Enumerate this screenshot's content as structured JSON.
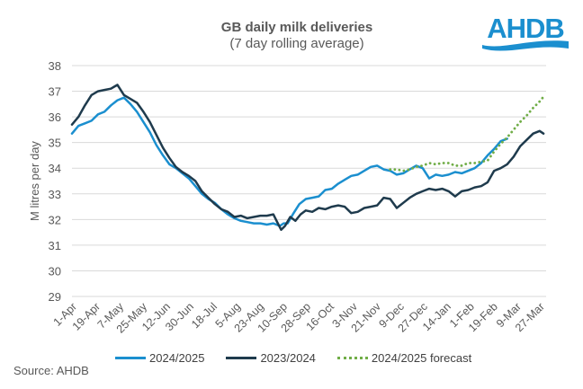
{
  "chart_data": {
    "type": "line",
    "title": "GB daily milk deliveries",
    "subtitle": "(7 day rolling average)",
    "xlabel": "",
    "ylabel": "M litres per day",
    "ylim": [
      29,
      38
    ],
    "yticks": [
      29,
      30,
      31,
      32,
      33,
      34,
      35,
      36,
      37,
      38
    ],
    "xlim_days": [
      0,
      365
    ],
    "x_tick_labels": [
      "1-Apr",
      "19-Apr",
      "7-May",
      "25-May",
      "12-Jun",
      "30-Jun",
      "18-Jul",
      "5-Aug",
      "23-Aug",
      "10-Sep",
      "28-Sep",
      "16-Oct",
      "3-Nov",
      "21-Nov",
      "9-Dec",
      "27-Dec",
      "14-Jan",
      "1-Feb",
      "19-Feb",
      "9-Mar",
      "27-Mar"
    ],
    "x_tick_days": [
      0,
      18,
      36,
      54,
      72,
      90,
      108,
      126,
      144,
      162,
      180,
      198,
      216,
      234,
      252,
      270,
      288,
      306,
      324,
      342,
      360
    ],
    "grid": "horizontal",
    "legend_position": "bottom",
    "series": [
      {
        "name": "2024/2025",
        "color": "#1b8fcf",
        "style": "solid",
        "x_days": [
          0,
          5,
          10,
          15,
          20,
          25,
          30,
          35,
          40,
          45,
          50,
          55,
          60,
          65,
          70,
          75,
          80,
          85,
          90,
          95,
          100,
          105,
          110,
          115,
          120,
          125,
          130,
          135,
          140,
          145,
          150,
          155,
          160,
          163,
          166,
          170,
          175,
          180,
          185,
          190,
          195,
          200,
          205,
          210,
          215,
          220,
          225,
          230,
          235,
          240,
          245,
          250,
          255,
          260,
          265,
          270,
          275,
          280,
          285,
          290,
          295,
          300,
          305,
          310,
          315,
          320,
          325,
          330,
          335
        ],
        "values": [
          35.35,
          35.65,
          35.75,
          35.85,
          36.1,
          36.2,
          36.45,
          36.65,
          36.75,
          36.5,
          36.2,
          35.8,
          35.4,
          34.9,
          34.5,
          34.15,
          34.0,
          33.8,
          33.6,
          33.3,
          33.0,
          32.8,
          32.65,
          32.4,
          32.2,
          32.05,
          31.95,
          31.9,
          31.85,
          31.85,
          31.8,
          31.85,
          31.75,
          31.85,
          31.85,
          32.2,
          32.6,
          32.8,
          32.85,
          32.9,
          33.15,
          33.2,
          33.4,
          33.55,
          33.7,
          33.75,
          33.9,
          34.05,
          34.1,
          33.95,
          33.9,
          33.75,
          33.8,
          33.95,
          34.1,
          34.0,
          33.6,
          33.75,
          33.7,
          33.75,
          33.85,
          33.8,
          33.9,
          34.0,
          34.2,
          34.5,
          34.75,
          35.05,
          35.15
        ]
      },
      {
        "name": "2023/2024",
        "color": "#1f3b4d",
        "style": "solid",
        "x_days": [
          0,
          5,
          10,
          15,
          20,
          25,
          30,
          35,
          40,
          45,
          50,
          55,
          60,
          65,
          70,
          75,
          80,
          85,
          90,
          95,
          100,
          105,
          110,
          115,
          120,
          125,
          130,
          135,
          140,
          145,
          150,
          155,
          158,
          161,
          164,
          168,
          172,
          176,
          180,
          185,
          190,
          195,
          200,
          205,
          210,
          215,
          220,
          225,
          230,
          235,
          240,
          245,
          250,
          255,
          260,
          265,
          270,
          275,
          280,
          285,
          290,
          295,
          300,
          305,
          310,
          315,
          320,
          325,
          330,
          335,
          340,
          345,
          350,
          355,
          360,
          363
        ],
        "values": [
          35.7,
          36.0,
          36.45,
          36.85,
          37.0,
          37.05,
          37.1,
          37.25,
          36.85,
          36.7,
          36.55,
          36.2,
          35.8,
          35.3,
          34.8,
          34.4,
          34.05,
          33.85,
          33.7,
          33.5,
          33.1,
          32.85,
          32.6,
          32.4,
          32.3,
          32.1,
          32.15,
          32.05,
          32.1,
          32.15,
          32.15,
          32.2,
          31.9,
          31.6,
          31.75,
          32.1,
          31.95,
          32.2,
          32.35,
          32.3,
          32.45,
          32.4,
          32.5,
          32.55,
          32.5,
          32.25,
          32.3,
          32.45,
          32.5,
          32.55,
          32.85,
          32.8,
          32.45,
          32.65,
          32.85,
          33.0,
          33.1,
          33.2,
          33.15,
          33.2,
          33.1,
          32.9,
          33.1,
          33.15,
          33.25,
          33.3,
          33.45,
          33.9,
          34.0,
          34.15,
          34.45,
          34.85,
          35.1,
          35.35,
          35.45,
          35.35
        ]
      },
      {
        "name": "2024/2025 forecast",
        "color": "#70ad47",
        "style": "dotted",
        "x_days": [
          245,
          250,
          255,
          260,
          265,
          270,
          275,
          280,
          285,
          290,
          295,
          300,
          305,
          310,
          315,
          320,
          325,
          330,
          335,
          340,
          345,
          350,
          355,
          360,
          364
        ],
        "values": [
          33.95,
          33.95,
          33.9,
          33.95,
          34.05,
          34.1,
          34.2,
          34.15,
          34.2,
          34.2,
          34.1,
          34.1,
          34.2,
          34.2,
          34.25,
          34.3,
          34.65,
          34.95,
          35.2,
          35.5,
          35.8,
          36.05,
          36.35,
          36.6,
          36.85
        ]
      }
    ]
  },
  "footer": {
    "source": "Source: AHDB"
  },
  "logo": {
    "text": "AHDB",
    "color": "#1b8fcf"
  }
}
